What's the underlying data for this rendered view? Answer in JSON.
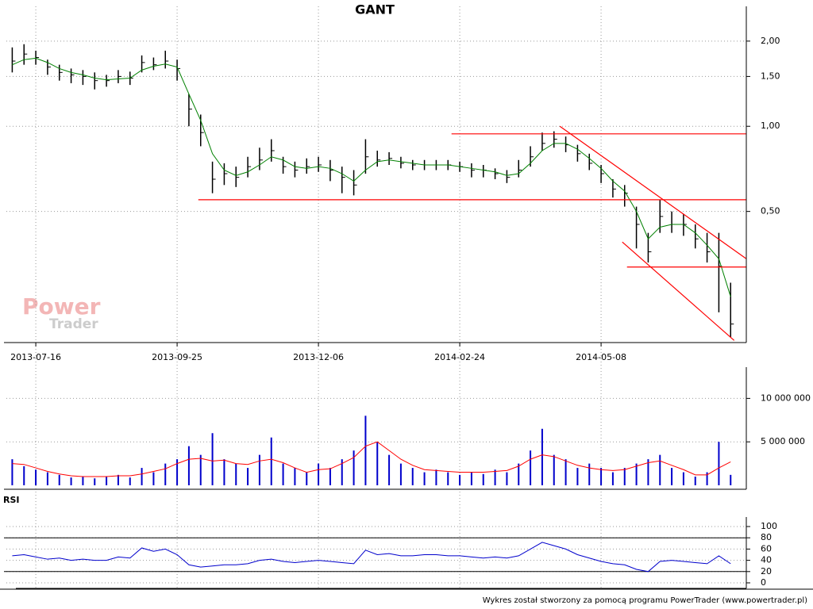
{
  "title": "GANT",
  "footer": "Wykres został stworzony za pomocą programu PowerTrader (www.powertrader.pl)",
  "watermark": [
    "Power",
    "Trader"
  ],
  "chart_data": [
    {
      "type": "ohlc",
      "log": true,
      "categories": [
        null,
        null,
        "2013-07-16",
        null,
        null,
        null,
        null,
        null,
        null,
        null,
        null,
        null,
        null,
        null,
        "2013-09-25",
        null,
        null,
        null,
        null,
        null,
        null,
        null,
        null,
        null,
        null,
        null,
        "2013-12-06",
        null,
        null,
        null,
        null,
        null,
        null,
        null,
        null,
        null,
        null,
        null,
        "2014-02-24",
        null,
        null,
        null,
        null,
        null,
        null,
        null,
        null,
        null,
        null,
        null,
        "2014-05-08",
        null,
        null,
        null,
        null,
        null,
        null,
        null,
        null,
        null,
        null,
        null
      ],
      "high": [
        1.9,
        1.95,
        1.85,
        1.72,
        1.65,
        1.6,
        1.58,
        1.55,
        1.52,
        1.58,
        1.56,
        1.78,
        1.75,
        1.85,
        1.72,
        1.3,
        1.1,
        0.75,
        0.74,
        0.72,
        0.78,
        0.84,
        0.9,
        0.78,
        0.75,
        0.77,
        0.78,
        0.76,
        0.72,
        0.7,
        0.9,
        0.82,
        0.81,
        0.78,
        0.76,
        0.76,
        0.76,
        0.76,
        0.75,
        0.74,
        0.73,
        0.71,
        0.7,
        0.76,
        0.85,
        0.95,
        0.96,
        0.92,
        0.86,
        0.8,
        0.73,
        0.65,
        0.62,
        0.52,
        0.42,
        0.55,
        0.5,
        0.49,
        0.45,
        0.42,
        0.42,
        0.28
      ],
      "low": [
        1.55,
        1.65,
        1.65,
        1.52,
        1.45,
        1.42,
        1.4,
        1.35,
        1.38,
        1.42,
        1.4,
        1.55,
        1.58,
        1.6,
        1.45,
        1.0,
        0.85,
        0.58,
        0.62,
        0.61,
        0.66,
        0.7,
        0.75,
        0.68,
        0.66,
        0.68,
        0.69,
        0.64,
        0.58,
        0.57,
        0.68,
        0.72,
        0.73,
        0.71,
        0.7,
        0.7,
        0.7,
        0.7,
        0.69,
        0.66,
        0.66,
        0.65,
        0.63,
        0.66,
        0.72,
        0.82,
        0.84,
        0.81,
        0.75,
        0.7,
        0.63,
        0.56,
        0.52,
        0.37,
        0.33,
        0.42,
        0.42,
        0.41,
        0.37,
        0.33,
        0.22,
        0.18
      ],
      "close": [
        1.7,
        1.8,
        1.75,
        1.62,
        1.55,
        1.52,
        1.5,
        1.45,
        1.45,
        1.5,
        1.48,
        1.68,
        1.65,
        1.7,
        1.6,
        1.15,
        0.95,
        0.65,
        0.68,
        0.66,
        0.72,
        0.76,
        0.82,
        0.72,
        0.7,
        0.72,
        0.73,
        0.7,
        0.66,
        0.62,
        0.78,
        0.76,
        0.77,
        0.74,
        0.73,
        0.73,
        0.73,
        0.73,
        0.72,
        0.7,
        0.7,
        0.68,
        0.66,
        0.7,
        0.78,
        0.87,
        0.9,
        0.86,
        0.8,
        0.74,
        0.68,
        0.6,
        0.58,
        0.45,
        0.36,
        0.48,
        0.45,
        0.45,
        0.4,
        0.36,
        0.32,
        0.2
      ],
      "color": "#000000",
      "average": {
        "color": "#008000",
        "values": [
          1.65,
          1.72,
          1.74,
          1.68,
          1.6,
          1.55,
          1.52,
          1.48,
          1.46,
          1.47,
          1.48,
          1.58,
          1.63,
          1.66,
          1.62,
          1.3,
          1.05,
          0.8,
          0.7,
          0.67,
          0.69,
          0.73,
          0.78,
          0.76,
          0.72,
          0.71,
          0.72,
          0.71,
          0.68,
          0.64,
          0.7,
          0.75,
          0.76,
          0.75,
          0.74,
          0.73,
          0.73,
          0.73,
          0.72,
          0.71,
          0.7,
          0.69,
          0.67,
          0.68,
          0.74,
          0.82,
          0.87,
          0.87,
          0.83,
          0.77,
          0.71,
          0.64,
          0.59,
          0.5,
          0.4,
          0.44,
          0.45,
          0.45,
          0.42,
          0.38,
          0.34,
          0.25
        ]
      },
      "trendlines": {
        "color": "#ff0000",
        "lines": [
          {
            "x": [
              37.3,
              62.3
            ],
            "y": [
              0.94,
              0.94
            ]
          },
          {
            "x": [
              15.8,
              62.3
            ],
            "y": [
              0.55,
              0.55
            ]
          },
          {
            "x": [
              46.5,
              62.3
            ],
            "y": [
              1.0,
              0.341
            ]
          },
          {
            "x": [
              51.8,
              61.3
            ],
            "y": [
              0.39,
              0.175
            ]
          },
          {
            "x": [
              52.2,
              62.3
            ],
            "y": [
              0.318,
              0.318
            ]
          }
        ]
      },
      "ylim": [
        0.172,
        2.62
      ],
      "yticks": [
        {
          "value": 0.5,
          "label": "0,50"
        },
        {
          "value": 1,
          "label": "1,00"
        },
        {
          "value": 1.5,
          "label": "1,50"
        },
        {
          "value": 2,
          "label": "2,00"
        }
      ],
      "grid": true
    },
    {
      "type": "bar",
      "color": "#0000cc",
      "values": [
        3000000,
        2200000,
        1800000,
        1500000,
        1200000,
        900000,
        1000000,
        800000,
        1000000,
        1200000,
        900000,
        2000000,
        1500000,
        2500000,
        3000000,
        4500000,
        3500000,
        6000000,
        3000000,
        2500000,
        2000000,
        3500000,
        5500000,
        2500000,
        2000000,
        1500000,
        2500000,
        2000000,
        3000000,
        4000000,
        8000000,
        5000000,
        3500000,
        2500000,
        2000000,
        1500000,
        1800000,
        1500000,
        1200000,
        1500000,
        1300000,
        1800000,
        1500000,
        2500000,
        4000000,
        6500000,
        3500000,
        3000000,
        2000000,
        2500000,
        2000000,
        1500000,
        2000000,
        2500000,
        3000000,
        3500000,
        2000000,
        1500000,
        1000000,
        1500000,
        5000000,
        1200000
      ],
      "average": {
        "color": "#ff0000",
        "values": [
          2500000,
          2400000,
          2000000,
          1600000,
          1300000,
          1100000,
          1000000,
          1000000,
          1000000,
          1100000,
          1100000,
          1300000,
          1600000,
          1900000,
          2500000,
          3000000,
          3100000,
          2800000,
          2900000,
          2500000,
          2400000,
          2800000,
          3000000,
          2600000,
          2000000,
          1500000,
          1800000,
          1900000,
          2500000,
          3200000,
          4500000,
          5000000,
          4000000,
          3000000,
          2300000,
          1800000,
          1700000,
          1600000,
          1500000,
          1500000,
          1500000,
          1600000,
          1700000,
          2200000,
          3000000,
          3500000,
          3300000,
          2800000,
          2300000,
          2000000,
          1800000,
          1700000,
          1800000,
          2200000,
          2600000,
          2800000,
          2300000,
          1800000,
          1200000,
          1200000,
          2000000,
          2700000
        ]
      },
      "ylim": [
        0,
        12500000
      ],
      "yticks": [
        {
          "value": 5000000,
          "label": "5 000 000"
        },
        {
          "value": 10000000,
          "label": "10 000 000"
        }
      ],
      "grid": true
    },
    {
      "type": "line",
      "title": "RSI",
      "color": "#0000cc",
      "values": [
        48,
        50,
        46,
        42,
        44,
        40,
        42,
        40,
        40,
        46,
        44,
        62,
        56,
        60,
        50,
        32,
        28,
        30,
        32,
        32,
        34,
        40,
        42,
        38,
        36,
        38,
        40,
        38,
        36,
        34,
        58,
        50,
        52,
        48,
        48,
        50,
        50,
        48,
        48,
        46,
        44,
        46,
        44,
        48,
        60,
        72,
        66,
        60,
        50,
        44,
        38,
        34,
        32,
        24,
        20,
        38,
        40,
        38,
        36,
        34,
        48,
        34
      ],
      "levels": [
        20,
        80
      ],
      "ylim": [
        0,
        100
      ],
      "yticks": [
        0,
        20,
        40,
        60,
        80,
        100
      ],
      "grid": true
    }
  ]
}
